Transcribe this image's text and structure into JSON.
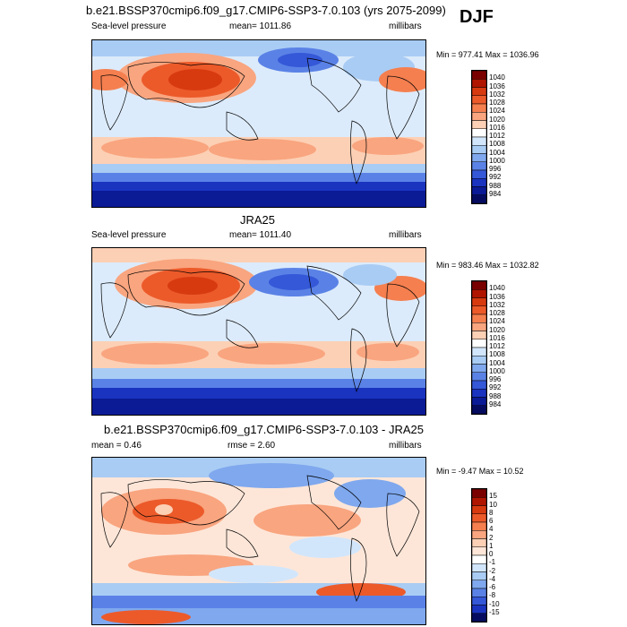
{
  "season": "DJF",
  "panels": [
    {
      "title": "b.e21.BSSP370cmip6.f09_g17.CMIP6-SSP3-7.0.103 (yrs 2075-2099)",
      "left_label": "Sea-level pressure",
      "center_label": "mean= 1011.86",
      "right_label": "millibars",
      "minmax": "Min = 977.41 Max = 1036.96",
      "colorbar_labels": [
        "1040",
        "1036",
        "1032",
        "1028",
        "1024",
        "1020",
        "1016",
        "1012",
        "1008",
        "1004",
        "1000",
        "996",
        "992",
        "988",
        "984"
      ],
      "colorbar_colors": [
        "#7a0000",
        "#b01500",
        "#d83a10",
        "#ec5a2a",
        "#f57f4f",
        "#f9a57f",
        "#fcd0b5",
        "#ffffff",
        "#d2e6fb",
        "#a9ccf4",
        "#7fa8ee",
        "#5a82e6",
        "#3558d8",
        "#1a34c0",
        "#0b1a95",
        "#050c60"
      ]
    },
    {
      "title": "JRA25",
      "left_label": "Sea-level pressure",
      "center_label": "mean= 1011.40",
      "right_label": "millibars",
      "minmax": "Min = 983.46 Max = 1032.82",
      "colorbar_labels": [
        "1040",
        "1036",
        "1032",
        "1028",
        "1024",
        "1020",
        "1016",
        "1012",
        "1008",
        "1004",
        "1000",
        "996",
        "992",
        "988",
        "984"
      ],
      "colorbar_colors": [
        "#7a0000",
        "#b01500",
        "#d83a10",
        "#ec5a2a",
        "#f57f4f",
        "#f9a57f",
        "#fcd0b5",
        "#ffffff",
        "#d2e6fb",
        "#a9ccf4",
        "#7fa8ee",
        "#5a82e6",
        "#3558d8",
        "#1a34c0",
        "#0b1a95",
        "#050c60"
      ]
    },
    {
      "title": "b.e21.BSSP370cmip6.f09_g17.CMIP6-SSP3-7.0.103 - JRA25",
      "left_label": "mean =   0.46",
      "center_label": "rmse =   2.60",
      "right_label": "millibars",
      "minmax": "Min =  -9.47 Max =  10.52",
      "colorbar_labels": [
        "15",
        "10",
        "8",
        "6",
        "4",
        "2",
        "1",
        "0",
        "-1",
        "-2",
        "-4",
        "-6",
        "-8",
        "-10",
        "-15"
      ],
      "colorbar_colors": [
        "#7a0000",
        "#b01500",
        "#d83a10",
        "#ec5a2a",
        "#f57f4f",
        "#f9a57f",
        "#fcd0b5",
        "#fde6d8",
        "#ffffff",
        "#d2e6fb",
        "#a9ccf4",
        "#7fa8ee",
        "#5a82e6",
        "#3558d8",
        "#1a34c0",
        "#050c60"
      ]
    }
  ]
}
